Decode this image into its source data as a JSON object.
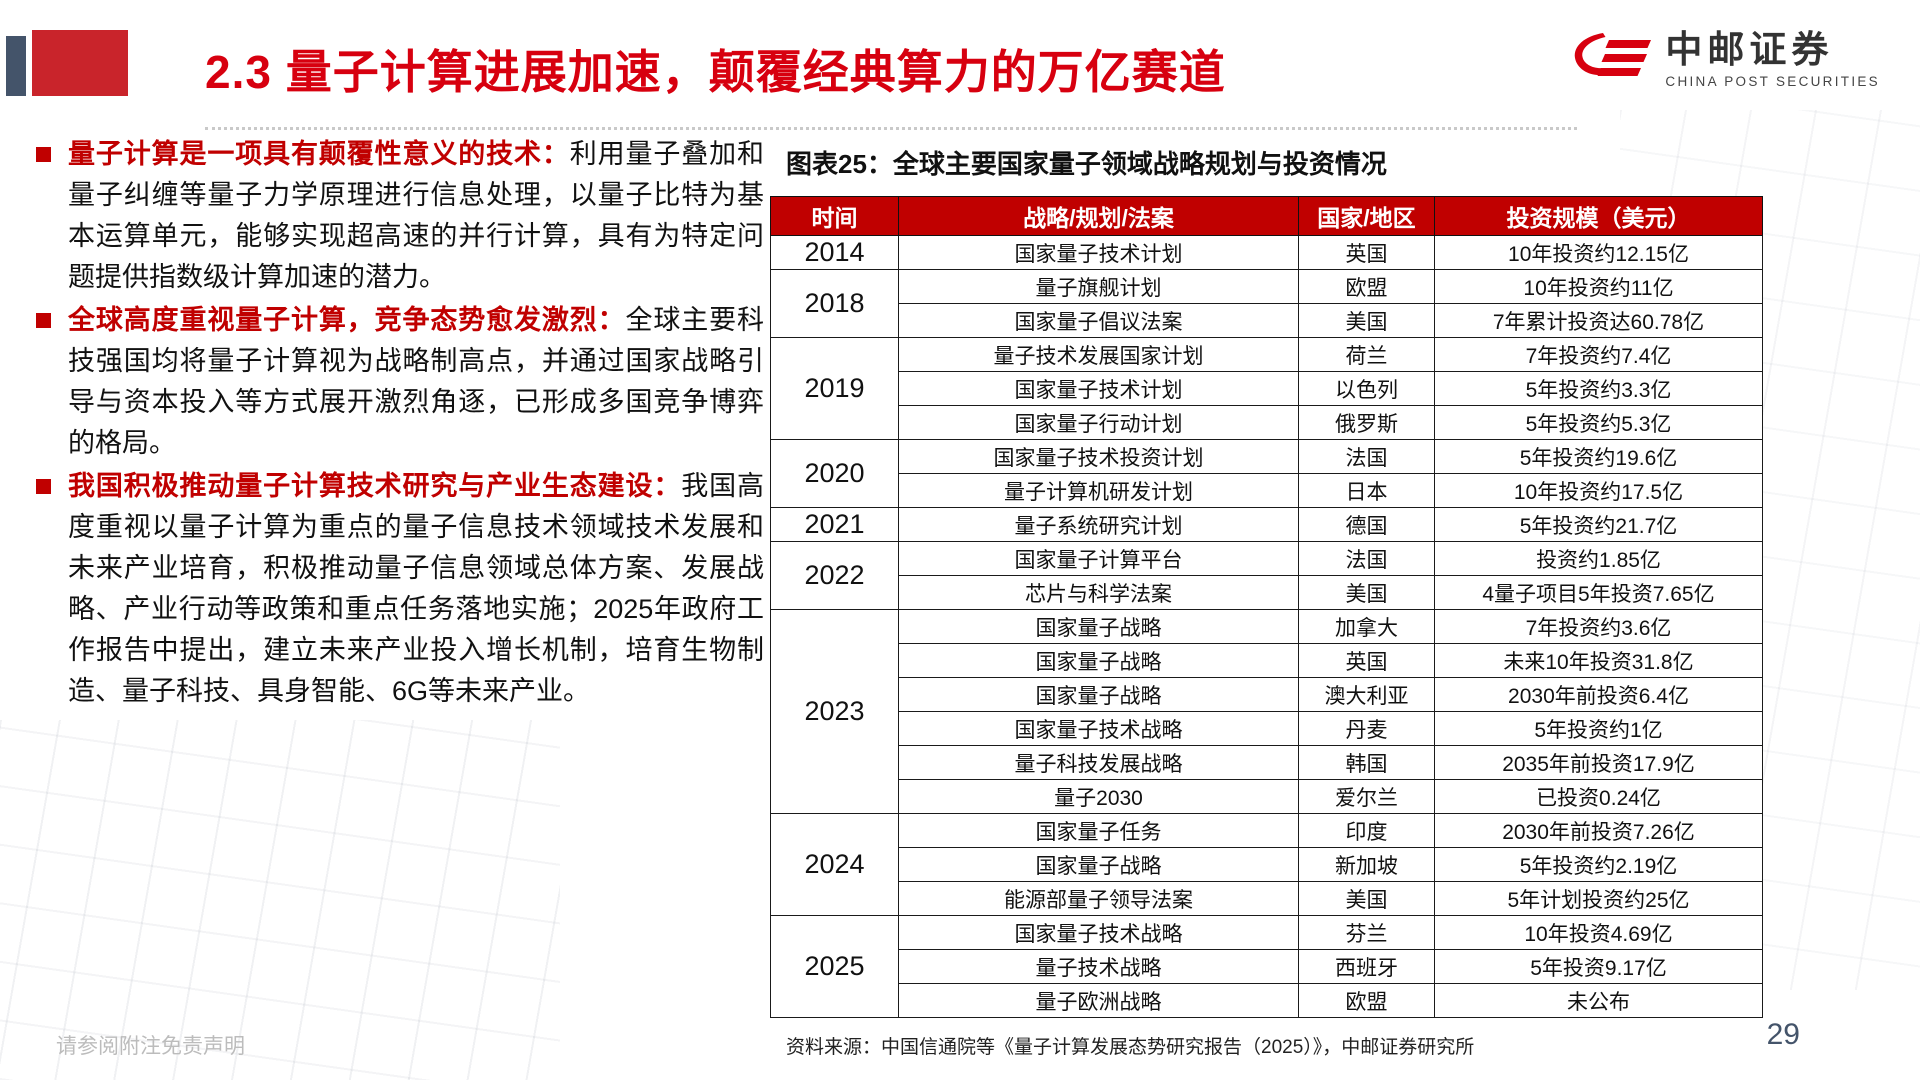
{
  "header": {
    "title": "2.3 量子计算进展加速，颠覆经典算力的万亿赛道",
    "logo_cn": "中邮证券",
    "logo_en": "CHINA POST SECURITIES"
  },
  "bullets": [
    {
      "lead": "量子计算是一项具有颠覆性意义的技术：",
      "text": "利用量子叠加和量子纠缠等量子力学原理进行信息处理，以量子比特为基本运算单元，能够实现超高速的并行计算，具有为特定问题提供指数级计算加速的潜力。"
    },
    {
      "lead": "全球高度重视量子计算，竞争态势愈发激烈：",
      "text": "全球主要科技强国均将量子计算视为战略制高点，并通过国家战略引导与资本投入等方式展开激烈角逐，已形成多国竞争博弈的格局。"
    },
    {
      "lead": "我国积极推动量子计算技术研究与产业生态建设：",
      "text": "我国高度重视以量子计算为重点的量子信息技术领域技术发展和未来产业培育，积极推动量子信息领域总体方案、发展战略、产业行动等政策和重点任务落地实施；2025年政府工作报告中提出，建立未来产业投入增长机制，培育生物制造、量子科技、具身智能、6G等未来产业。"
    }
  ],
  "figure": {
    "title": "图表25：全球主要国家量子领域战略规划与投资情况"
  },
  "chart_data": {
    "type": "table",
    "title": "全球主要国家量子领域战略规划与投资情况",
    "headers": [
      "时间",
      "战略/规划/法案",
      "国家/地区",
      "投资规模（美元）"
    ],
    "groups": [
      {
        "year": "2014",
        "rows": [
          {
            "plan": "国家量子技术计划",
            "region": "英国",
            "investment": "10年投资约12.15亿"
          }
        ]
      },
      {
        "year": "2018",
        "rows": [
          {
            "plan": "量子旗舰计划",
            "region": "欧盟",
            "investment": "10年投资约11亿"
          },
          {
            "plan": "国家量子倡议法案",
            "region": "美国",
            "investment": "7年累计投资达60.78亿"
          }
        ]
      },
      {
        "year": "2019",
        "rows": [
          {
            "plan": "量子技术发展国家计划",
            "region": "荷兰",
            "investment": "7年投资约7.4亿"
          },
          {
            "plan": "国家量子技术计划",
            "region": "以色列",
            "investment": "5年投资约3.3亿"
          },
          {
            "plan": "国家量子行动计划",
            "region": "俄罗斯",
            "investment": "5年投资约5.3亿"
          }
        ]
      },
      {
        "year": "2020",
        "rows": [
          {
            "plan": "国家量子技术投资计划",
            "region": "法国",
            "investment": "5年投资约19.6亿"
          },
          {
            "plan": "量子计算机研发计划",
            "region": "日本",
            "investment": "10年投资约17.5亿"
          }
        ]
      },
      {
        "year": "2021",
        "rows": [
          {
            "plan": "量子系统研究计划",
            "region": "德国",
            "investment": "5年投资约21.7亿"
          }
        ]
      },
      {
        "year": "2022",
        "rows": [
          {
            "plan": "国家量子计算平台",
            "region": "法国",
            "investment": "投资约1.85亿"
          },
          {
            "plan": "芯片与科学法案",
            "region": "美国",
            "investment": "4量子项目5年投资7.65亿"
          }
        ]
      },
      {
        "year": "2023",
        "rows": [
          {
            "plan": "国家量子战略",
            "region": "加拿大",
            "investment": "7年投资约3.6亿"
          },
          {
            "plan": "国家量子战略",
            "region": "英国",
            "investment": "未来10年投资31.8亿"
          },
          {
            "plan": "国家量子战略",
            "region": "澳大利亚",
            "investment": "2030年前投资6.4亿"
          },
          {
            "plan": "国家量子技术战略",
            "region": "丹麦",
            "investment": "5年投资约1亿"
          },
          {
            "plan": "量子科技发展战略",
            "region": "韩国",
            "investment": "2035年前投资17.9亿"
          },
          {
            "plan": "量子2030",
            "region": "爱尔兰",
            "investment": "已投资0.24亿"
          }
        ]
      },
      {
        "year": "2024",
        "rows": [
          {
            "plan": "国家量子任务",
            "region": "印度",
            "investment": "2030年前投资7.26亿"
          },
          {
            "plan": "国家量子战略",
            "region": "新加坡",
            "investment": "5年投资约2.19亿"
          },
          {
            "plan": "能源部量子领导法案",
            "region": "美国",
            "investment": "5年计划投资约25亿"
          }
        ]
      },
      {
        "year": "2025",
        "rows": [
          {
            "plan": "国家量子技术战略",
            "region": "芬兰",
            "investment": "10年投资4.69亿"
          },
          {
            "plan": "量子技术战略",
            "region": "西班牙",
            "investment": "5年投资9.17亿"
          },
          {
            "plan": "量子欧洲战略",
            "region": "欧盟",
            "investment": "未公布"
          }
        ]
      }
    ]
  },
  "footer": {
    "disclaimer": "请参阅附注免责声明",
    "source": "资料来源：中国信通院等《量子计算发展态势研究报告（2025）》，中邮证券研究所",
    "page_number": "29"
  },
  "colors": {
    "title_red": "#D7000F",
    "accent_red": "#C00000",
    "deco_slate": "#44546A",
    "deco_red": "#C9242B"
  }
}
